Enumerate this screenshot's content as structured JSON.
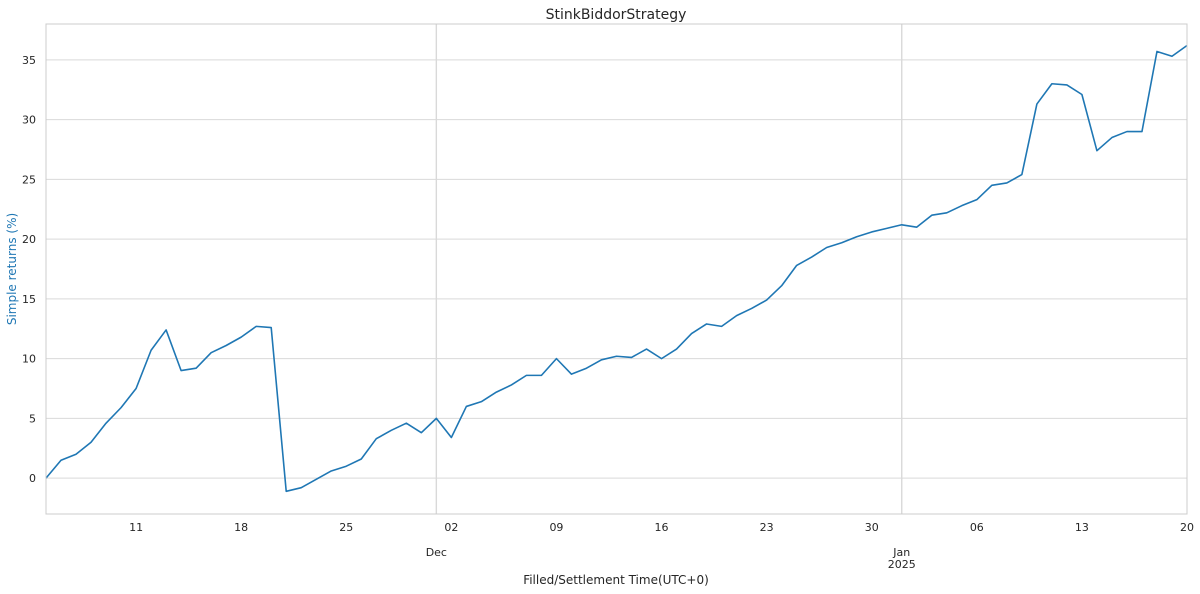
{
  "chart_data": {
    "type": "line",
    "title": "StinkBiddorStrategy",
    "xlabel": "Filled/Settlement Time(UTC+0)",
    "ylabel": "Simple returns (%)",
    "ylim": [
      -3,
      38
    ],
    "xlim": [
      "2024-11-05",
      "2025-01-20"
    ],
    "y_ticks": [
      0,
      5,
      10,
      15,
      20,
      25,
      30,
      35
    ],
    "x_ticks": [
      {
        "date": "2024-11-11",
        "label": "11",
        "sublabel": ""
      },
      {
        "date": "2024-11-18",
        "label": "18",
        "sublabel": ""
      },
      {
        "date": "2024-11-25",
        "label": "25",
        "sublabel": ""
      },
      {
        "date": "2024-12-01",
        "label": "",
        "sublabel": "Dec"
      },
      {
        "date": "2024-12-02",
        "label": "02",
        "sublabel": ""
      },
      {
        "date": "2024-12-09",
        "label": "09",
        "sublabel": ""
      },
      {
        "date": "2024-12-16",
        "label": "16",
        "sublabel": ""
      },
      {
        "date": "2024-12-23",
        "label": "23",
        "sublabel": ""
      },
      {
        "date": "2024-12-30",
        "label": "30",
        "sublabel": ""
      },
      {
        "date": "2025-01-01",
        "label": "",
        "sublabel": "Jan\n2025"
      },
      {
        "date": "2025-01-06",
        "label": "06",
        "sublabel": ""
      },
      {
        "date": "2025-01-13",
        "label": "13",
        "sublabel": ""
      },
      {
        "date": "2025-01-20",
        "label": "20",
        "sublabel": ""
      }
    ],
    "major_gridlines_x": [
      "2024-12-01",
      "2025-01-01"
    ],
    "grid": true,
    "line_color": "#1f77b4",
    "ylabel_color": "#1f77b4",
    "series": [
      {
        "x": [
          "2024-11-05",
          "2024-11-06",
          "2024-11-07",
          "2024-11-08",
          "2024-11-09",
          "2024-11-10",
          "2024-11-11",
          "2024-11-12",
          "2024-11-13",
          "2024-11-14",
          "2024-11-15",
          "2024-11-16",
          "2024-11-17",
          "2024-11-18",
          "2024-11-19",
          "2024-11-20",
          "2024-11-21",
          "2024-11-22",
          "2024-11-23",
          "2024-11-24",
          "2024-11-25",
          "2024-11-26",
          "2024-11-27",
          "2024-11-28",
          "2024-11-29",
          "2024-11-30",
          "2024-12-01",
          "2024-12-02",
          "2024-12-03",
          "2024-12-04",
          "2024-12-05",
          "2024-12-06",
          "2024-12-07",
          "2024-12-08",
          "2024-12-09",
          "2024-12-10",
          "2024-12-11",
          "2024-12-12",
          "2024-12-13",
          "2024-12-14",
          "2024-12-15",
          "2024-12-16",
          "2024-12-17",
          "2024-12-18",
          "2024-12-19",
          "2024-12-20",
          "2024-12-21",
          "2024-12-22",
          "2024-12-23",
          "2024-12-24",
          "2024-12-25",
          "2024-12-26",
          "2024-12-27",
          "2024-12-28",
          "2024-12-29",
          "2024-12-30",
          "2024-12-31",
          "2025-01-01",
          "2025-01-02",
          "2025-01-03",
          "2025-01-04",
          "2025-01-05",
          "2025-01-06",
          "2025-01-07",
          "2025-01-08",
          "2025-01-09",
          "2025-01-10",
          "2025-01-11",
          "2025-01-12",
          "2025-01-13",
          "2025-01-14",
          "2025-01-15",
          "2025-01-16",
          "2025-01-17",
          "2025-01-18",
          "2025-01-19",
          "2025-01-20"
        ],
        "y": [
          0.0,
          1.5,
          2.0,
          3.0,
          4.6,
          5.9,
          7.5,
          10.7,
          12.4,
          9.0,
          9.2,
          10.5,
          11.1,
          11.8,
          12.7,
          12.6,
          -1.1,
          -0.8,
          -0.1,
          0.6,
          1.0,
          1.6,
          3.3,
          4.0,
          4.6,
          3.8,
          5.0,
          3.4,
          6.0,
          6.4,
          7.2,
          7.8,
          8.6,
          8.6,
          10.0,
          8.7,
          9.2,
          9.9,
          10.2,
          10.1,
          10.8,
          10.0,
          10.8,
          12.1,
          12.9,
          12.7,
          13.6,
          14.2,
          14.9,
          16.1,
          17.8,
          18.5,
          19.3,
          19.7,
          20.2,
          20.6,
          20.9,
          21.2,
          21.0,
          22.0,
          22.2,
          22.8,
          23.3,
          24.5,
          24.7,
          25.4,
          31.3,
          33.0,
          32.9,
          32.1,
          27.4,
          28.5,
          29.0,
          29.0,
          35.7,
          35.3,
          36.2
        ]
      }
    ]
  }
}
